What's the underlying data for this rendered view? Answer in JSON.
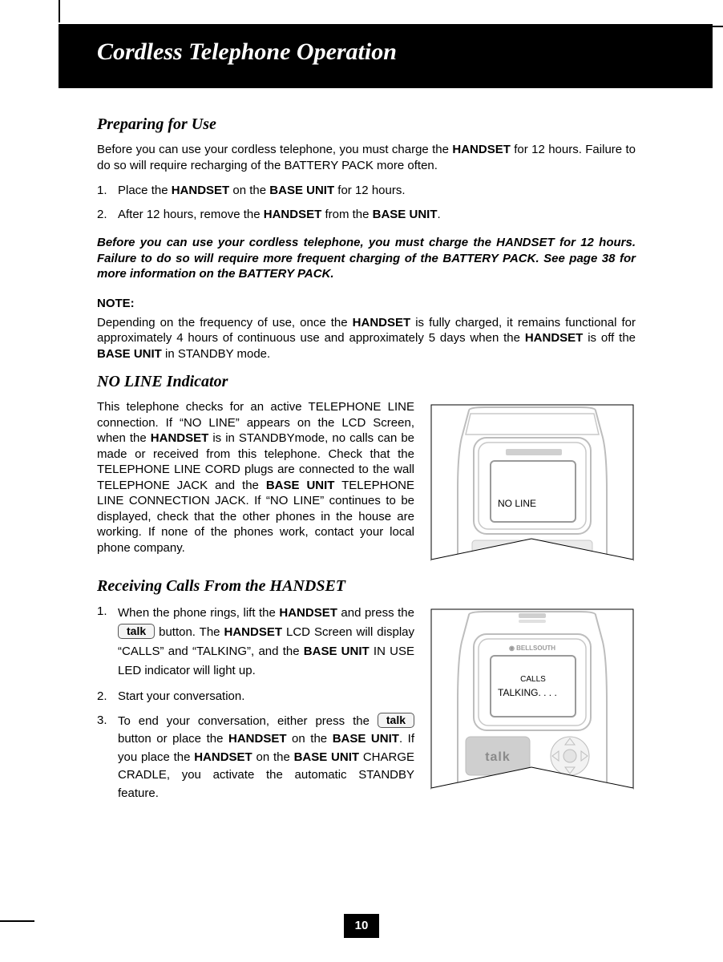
{
  "banner": {
    "title": "Cordless Telephone Operation"
  },
  "sections": {
    "preparing": {
      "heading": "Preparing for Use",
      "intro_html": "Before you can use your cordless telephone, you must charge the <b>HANDSET</b> for 12 hours. Failure to do so will require recharging of the BATTERY PACK more often.",
      "steps": [
        "Place the <b>HANDSET</b> on the <b>BASE UNIT</b> for 12 hours.",
        "After 12 hours, remove the <b>HANDSET</b> from the <b>BASE UNIT</b>."
      ],
      "warning": "Before you can use your cordless telephone, you must charge the HANDSET for 12 hours. Failure to do so will require more frequent charging of the BATTERY PACK. See page 38 for more information on the BATTERY PACK.",
      "note_label": "NOTE",
      "note_html": "Depending on the frequency of use, once the <b>HANDSET</b> is fully charged, it remains functional for approximately 4 hours of continuous use and approximately 5 days when the <b>HANDSET</b> is off the <b>BASE UNIT</b> in STANDBY mode."
    },
    "noline": {
      "heading": "NO LINE Indicator",
      "body_html": "This telephone checks for an active TELEPHONE LINE connection. If “NO LINE” appears on the LCD Screen, when the <b>HANDSET</b> is in STANDBYmode, no calls can be made or received from this telephone. Check that the TELEPHONE LINE CORD plugs are connected to the wall TELEPHONE JACK and the <b>BASE UNIT</b> TELEPHONE LINE CONNECTION JACK. If “NO LINE” continues to be displayed, check that the other phones in the house are working. If none of the phones work, contact your local phone company.",
      "lcd_text": "NO LINE"
    },
    "receiving": {
      "heading": "Receiving Calls From the HANDSET",
      "steps": [
        "When the phone rings, lift the <b>HANDSET</b> and press the <span class=\"talk-btn\" data-name=\"talk-button-icon\" data-interactable=\"false\">talk</span> button. The <b>HANDSET</b> LCD Screen will display “CALLS” and “TALKING”, and the <b>BASE UNIT</b> IN USE LED indicator will light up.",
        "Start your conversation.",
        "To end your conversation, either press the <span class=\"talk-btn\" data-name=\"talk-button-icon\" data-interactable=\"false\">talk</span> button or place the <b>HANDSET</b> on the <b>BASE UNIT</b>. If you place the <b>HANDSET</b> on the <b>BASE UNIT</b> CHARGE CRADLE, you activate the automatic STANDBY feature."
      ],
      "lcd_line1": "CALLS",
      "lcd_line2": "TALKING. . . .",
      "brand": "BELLSOUTH",
      "talk_label": "talk"
    }
  },
  "page_number": "10",
  "colors": {
    "black": "#000000",
    "white": "#ffffff",
    "device_stroke": "#b4b4b4",
    "device_dark": "#8a8a8a",
    "lcd_border": "#9a9a9a"
  }
}
